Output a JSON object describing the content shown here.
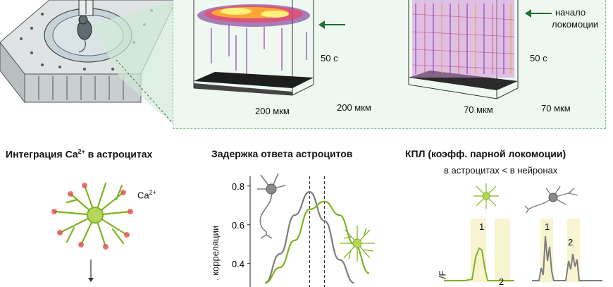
{
  "top": {
    "vol1_time": "50 с",
    "vol1_x": "200 мкм",
    "vol1_y": "200 мкм",
    "vol2_time": "50 с",
    "vol2_x": "70 мкм",
    "vol2_y": "70 мкм",
    "onset_label_line1": "начало",
    "onset_label_line2": "локомоции"
  },
  "left": {
    "title_part1": "Интеграция Ca",
    "title_sup": "2+",
    "title_part2": " в астроцитах",
    "ca_label": "Ca",
    "ca_sup": "2+"
  },
  "middle": {
    "title": "Задержка ответа астроцитов",
    "ylabel": ". корреляции",
    "yticks": [
      "0.8",
      "0.6",
      "0.4"
    ]
  },
  "right": {
    "title": "КПЛ (коэфф. парной локомоции)",
    "subtitle": "в астроцитах < в нейронах",
    "peak1_astro": "1",
    "peak2_astro": "2",
    "peak1_neuron": "1",
    "peak2_neuron": "2",
    "ylabel": "/F"
  },
  "colors": {
    "astrocyte_green": "#7fb321",
    "neuron_gray": "#7d7d7d",
    "arrow_green": "#1f6e35",
    "panel_bg": "#eef8f1",
    "panel_border": "#7fbf94",
    "highlight": "#f7f4cf"
  },
  "chart_data": {
    "type": "line",
    "title": "Задержка ответа астроцитов",
    "ylabel": ". корреляции",
    "yticks": [
      0.8,
      0.6,
      0.4
    ],
    "series": [
      {
        "color": "#7d7d7d",
        "x": [
          -3,
          -2,
          -1,
          0,
          1,
          2,
          3
        ],
        "values": [
          0.3,
          0.45,
          0.65,
          0.77,
          0.62,
          0.42,
          0.3
        ]
      },
      {
        "color": "#7fb321",
        "x": [
          -3,
          -2,
          -1,
          0,
          1,
          2,
          3,
          4
        ],
        "values": [
          0.3,
          0.38,
          0.52,
          0.68,
          0.72,
          0.65,
          0.5,
          0.35
        ]
      }
    ]
  }
}
